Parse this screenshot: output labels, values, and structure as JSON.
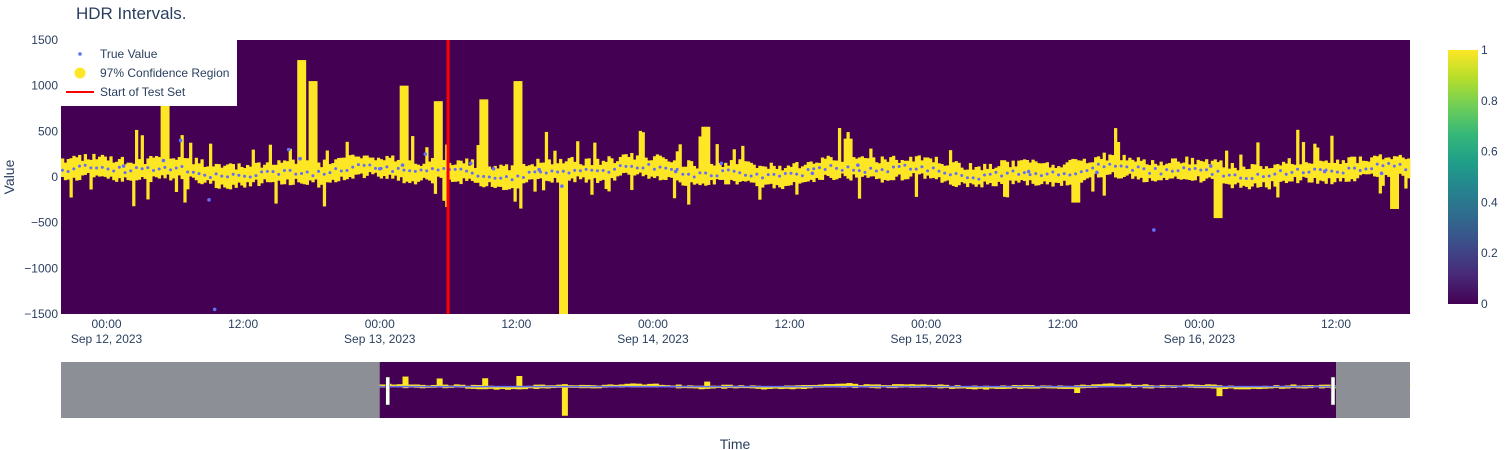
{
  "chart_data": {
    "type": "heatmap",
    "title": "HDR Intervals.",
    "xlabel": "Time",
    "ylabel": "Value",
    "ylim": [
      -1500,
      1500
    ],
    "yticks": [
      -1500,
      -1000,
      -500,
      0,
      500,
      1000,
      1500
    ],
    "ytick_labels": [
      "−1500",
      "−1000",
      "−500",
      "0",
      "500",
      "1000",
      "1500"
    ],
    "xlim": [
      "2023-09-11 20:00",
      "2023-09-16 18:30"
    ],
    "xticks": [
      {
        "t": "2023-09-12 00:00",
        "label": "00:00",
        "sub": "Sep 12, 2023"
      },
      {
        "t": "2023-09-12 12:00",
        "label": "12:00",
        "sub": ""
      },
      {
        "t": "2023-09-13 00:00",
        "label": "00:00",
        "sub": "Sep 13, 2023"
      },
      {
        "t": "2023-09-13 12:00",
        "label": "12:00",
        "sub": ""
      },
      {
        "t": "2023-09-14 00:00",
        "label": "00:00",
        "sub": "Sep 14, 2023"
      },
      {
        "t": "2023-09-14 12:00",
        "label": "12:00",
        "sub": ""
      },
      {
        "t": "2023-09-15 00:00",
        "label": "00:00",
        "sub": "Sep 15, 2023"
      },
      {
        "t": "2023-09-15 12:00",
        "label": "12:00",
        "sub": ""
      },
      {
        "t": "2023-09-16 00:00",
        "label": "00:00",
        "sub": "Sep 16, 2023"
      },
      {
        "t": "2023-09-16 12:00",
        "label": "12:00",
        "sub": ""
      }
    ],
    "colorscale": "viridis",
    "colorbar": {
      "min": 0,
      "max": 1,
      "ticks": [
        "0",
        "0.2",
        "0.4",
        "0.6",
        "0.8",
        "1"
      ]
    },
    "legend": {
      "placement": "top-left",
      "entries": [
        {
          "name": "True Value",
          "symbol": "dot",
          "color": "#636efa"
        },
        {
          "name": "97% Confidence Region",
          "symbol": "circle",
          "color": "#fde725"
        },
        {
          "name": "Start of Test Set",
          "symbol": "line",
          "color": "#ff0000"
        }
      ]
    },
    "test_start": "2023-09-13 06:00",
    "rangeslider": {
      "range": [
        "2023-09-13 00:00",
        "2023-09-16 12:00"
      ]
    },
    "colors": {
      "low": "#440154",
      "high": "#fde725",
      "true_value": "#636efa",
      "test_line": "#ff0000",
      "slider_mask": "#8c8f95"
    },
    "series": [
      {
        "name": "True Value",
        "x": [
          "2023-09-12 01:30",
          "2023-09-12 05:00",
          "2023-09-12 06:30",
          "2023-09-12 09:00",
          "2023-09-12 09:30",
          "2023-09-12 16:00",
          "2023-09-12 17:00",
          "2023-09-13 00:00",
          "2023-09-13 02:00",
          "2023-09-13 04:00",
          "2023-09-13 08:00",
          "2023-09-13 10:00",
          "2023-09-13 14:00",
          "2023-09-13 16:00",
          "2023-09-14 02:00",
          "2023-09-14 06:00",
          "2023-09-14 14:00",
          "2023-09-14 18:00",
          "2023-09-15 09:00",
          "2023-09-15 15:00",
          "2023-09-15 20:00",
          "2023-09-16 01:00",
          "2023-09-16 11:00",
          "2023-09-16 16:00"
        ],
        "values": [
          120,
          180,
          400,
          -250,
          -1450,
          300,
          200,
          90,
          130,
          250,
          150,
          90,
          80,
          -100,
          60,
          150,
          40,
          130,
          60,
          50,
          -580,
          120,
          60,
          40
        ]
      },
      {
        "name": "97% Confidence Region",
        "x": [
          "2023-09-12 05:00",
          "2023-09-12 17:00",
          "2023-09-12 18:00",
          "2023-09-13 02:00",
          "2023-09-13 05:00",
          "2023-09-13 09:00",
          "2023-09-13 12:00",
          "2023-09-13 16:00",
          "2023-09-14 04:30",
          "2023-09-14 17:00",
          "2023-09-15 13:00",
          "2023-09-16 01:30",
          "2023-09-16 17:00"
        ],
        "values": [
          1200,
          1280,
          1050,
          1000,
          830,
          850,
          1050,
          -1500,
          550,
          420,
          -280,
          -450,
          -350
        ]
      }
    ]
  }
}
